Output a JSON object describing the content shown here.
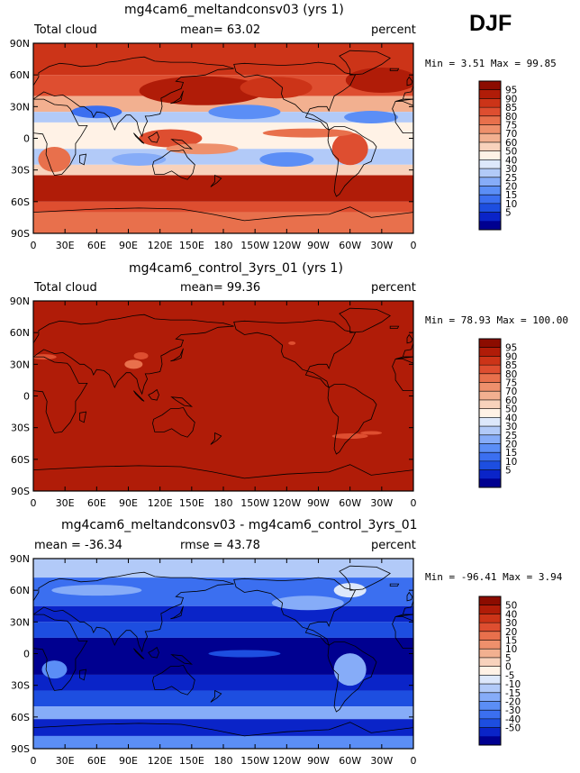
{
  "season": "DJF",
  "palettes": {
    "abs": [
      "#000090",
      "#0a24c8",
      "#1d4ee0",
      "#3b6ff0",
      "#5b8ef6",
      "#86acf8",
      "#b2caf8",
      "#dde8fb",
      "#fff2e6",
      "#f8d2bc",
      "#f2b090",
      "#ee906c",
      "#e8704c",
      "#de4e30",
      "#cc3418",
      "#b01c08",
      "#8c0c00"
    ],
    "diff": [
      "#000090",
      "#0a24c8",
      "#1d4ee0",
      "#3b6ff0",
      "#5b8ef6",
      "#86acf8",
      "#b2caf8",
      "#dde8fb",
      "#fff2e6",
      "#f8d2bc",
      "#f2b090",
      "#ee906c",
      "#e8704c",
      "#de4e30",
      "#cc3418",
      "#b01c08",
      "#8c0c00"
    ]
  },
  "panels": [
    {
      "id": "top",
      "title": "mg4cam6_meltandconsv03 (yrs 1)",
      "left_label": "Total cloud",
      "mid_label": "mean=   63.02",
      "right_label": "percent",
      "minmax": "Min =    3.51 Max =   99.85",
      "field": "experiment",
      "palette": "abs",
      "colorbar_levels": [
        "95",
        "90",
        "85",
        "80",
        "75",
        "70",
        "60",
        "50",
        "40",
        "30",
        "25",
        "20",
        "15",
        "10",
        "5"
      ]
    },
    {
      "id": "middle",
      "title": "mg4cam6_control_3yrs_01 (yrs 1)",
      "left_label": "Total cloud",
      "mid_label": "mean=   99.36",
      "right_label": "percent",
      "minmax": "Min =   78.93 Max =  100.00",
      "field": "control",
      "palette": "abs",
      "colorbar_levels": [
        "95",
        "90",
        "85",
        "80",
        "75",
        "70",
        "60",
        "50",
        "40",
        "30",
        "25",
        "20",
        "15",
        "10",
        "5"
      ]
    },
    {
      "id": "bottom",
      "title": "mg4cam6_meltandconsv03 - mg4cam6_control_3yrs_01",
      "left_label": "mean = -36.34",
      "mid_label": "rmse =   43.78",
      "right_label": "percent",
      "minmax": "Min =  -96.41 Max =    3.94",
      "field": "difference",
      "palette": "diff",
      "colorbar_levels": [
        "50",
        "40",
        "30",
        "20",
        "15",
        "10",
        "5",
        "0",
        "-5",
        "-10",
        "-15",
        "-20",
        "-30",
        "-40",
        "-50"
      ]
    }
  ],
  "chart_data": {
    "type": "heatmap",
    "variable": "Total cloud",
    "units": "percent",
    "season": "DJF",
    "lon_tick_labels": [
      "0",
      "30E",
      "60E",
      "90E",
      "120E",
      "150E",
      "180",
      "150W",
      "120W",
      "90W",
      "60W",
      "30W",
      "0"
    ],
    "lat_tick_labels": [
      "90N",
      "60N",
      "30N",
      "0",
      "30S",
      "60S",
      "90S"
    ],
    "lon_range": [
      0,
      360
    ],
    "lat_range": [
      -90,
      90
    ],
    "panels": [
      {
        "title": "mg4cam6_meltandconsv03 (yrs 1)",
        "mean": 63.02,
        "min": 3.51,
        "max": 99.85,
        "levels": [
          5,
          10,
          15,
          20,
          25,
          30,
          40,
          50,
          60,
          70,
          75,
          80,
          85,
          90,
          95
        ]
      },
      {
        "title": "mg4cam6_control_3yrs_01 (yrs 1)",
        "mean": 99.36,
        "min": 78.93,
        "max": 100.0,
        "levels": [
          5,
          10,
          15,
          20,
          25,
          30,
          40,
          50,
          60,
          70,
          75,
          80,
          85,
          90,
          95
        ]
      },
      {
        "title": "mg4cam6_meltandconsv03 - mg4cam6_control_3yrs_01",
        "mean": -36.34,
        "rmse": 43.78,
        "min": -96.41,
        "max": 3.94,
        "levels": [
          -50,
          -40,
          -30,
          -20,
          -15,
          -10,
          -5,
          0,
          5,
          10,
          15,
          20,
          30,
          40,
          50
        ]
      }
    ]
  }
}
